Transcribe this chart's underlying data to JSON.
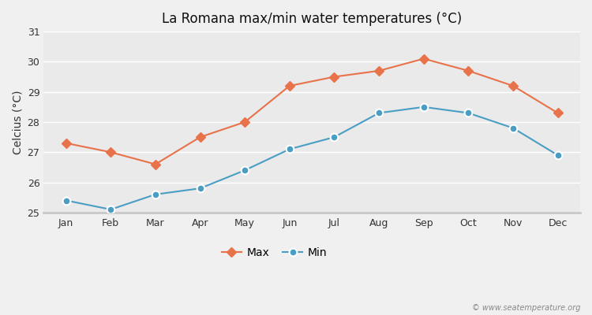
{
  "title": "La Romana max/min water temperatures (°C)",
  "ylabel": "Celcius (°C)",
  "months": [
    "Jan",
    "Feb",
    "Mar",
    "Apr",
    "May",
    "Jun",
    "Jul",
    "Aug",
    "Sep",
    "Oct",
    "Nov",
    "Dec"
  ],
  "max_values": [
    27.3,
    27.0,
    26.6,
    27.5,
    28.0,
    29.2,
    29.5,
    29.7,
    30.1,
    29.7,
    29.2,
    28.3
  ],
  "min_values": [
    25.4,
    25.1,
    25.6,
    25.8,
    26.4,
    27.1,
    27.5,
    28.3,
    28.5,
    28.3,
    27.8,
    26.9
  ],
  "max_color": "#e8724a",
  "min_color": "#4a9ec4",
  "fig_bg_color": "#f0f0f0",
  "plot_bg_color": "#eaeaea",
  "grid_color": "#ffffff",
  "bottom_bar_color": "#c8c8c8",
  "ylim": [
    25.0,
    31.0
  ],
  "yticks": [
    25,
    26,
    27,
    28,
    29,
    30,
    31
  ],
  "watermark": "© www.seatemperature.org",
  "legend_max": "Max",
  "legend_min": "Min"
}
